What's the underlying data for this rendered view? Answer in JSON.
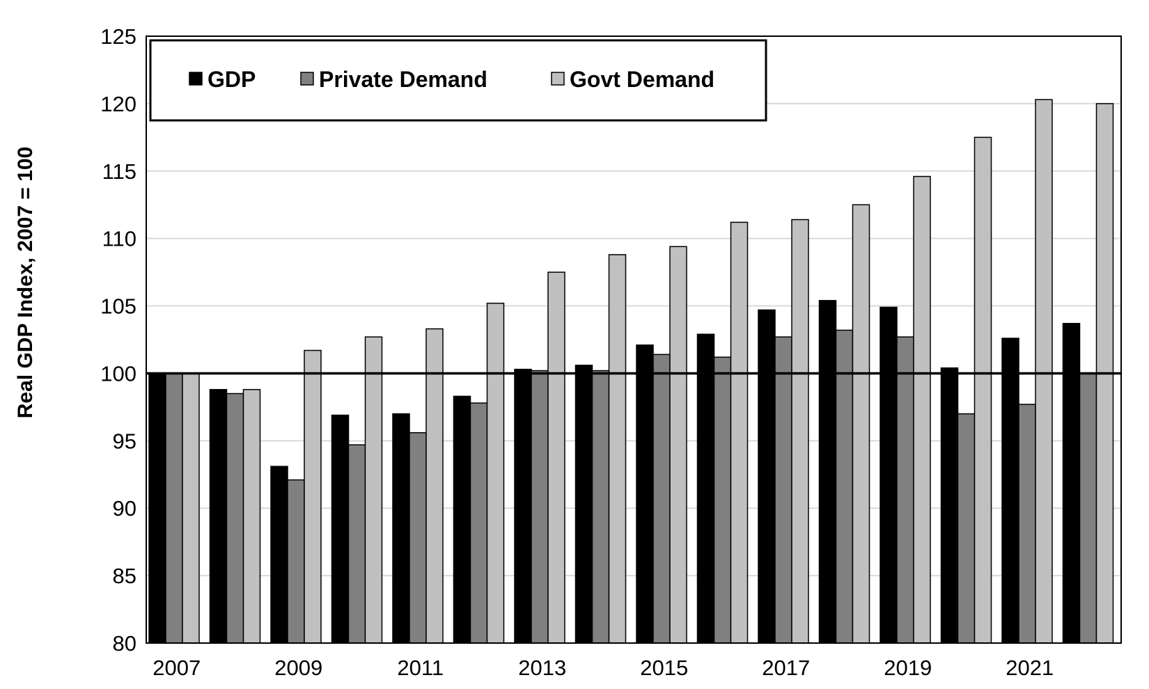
{
  "chart_data": {
    "type": "bar",
    "ylabel": "Real GDP Index, 2007 = 100",
    "xlabel": "",
    "ylim": [
      80,
      125
    ],
    "ytick_step": 5,
    "reference_line": 100,
    "grid": true,
    "legend_position": "top-left",
    "categories": [
      "2007",
      "2008",
      "2009",
      "2010",
      "2011",
      "2012",
      "2013",
      "2014",
      "2015",
      "2016",
      "2017",
      "2018",
      "2019",
      "2020",
      "2021",
      "2022"
    ],
    "xtick_labels": [
      "2007",
      "",
      "2009",
      "",
      "2011",
      "",
      "2013",
      "",
      "2015",
      "",
      "2017",
      "",
      "2019",
      "",
      "2021",
      ""
    ],
    "series": [
      {
        "name": "GDP",
        "color": "#000000",
        "values": [
          100.0,
          98.8,
          93.1,
          96.9,
          97.0,
          98.3,
          100.3,
          100.6,
          102.1,
          102.9,
          104.7,
          105.4,
          104.9,
          100.4,
          102.6,
          103.7
        ]
      },
      {
        "name": "Private Demand",
        "color": "#808080",
        "values": [
          100.0,
          98.5,
          92.1,
          94.7,
          95.6,
          97.8,
          100.2,
          100.2,
          101.4,
          101.2,
          102.7,
          103.2,
          102.7,
          97.0,
          97.7,
          100.0
        ]
      },
      {
        "name": "Govt Demand",
        "color": "#c0c0c0",
        "values": [
          100.0,
          98.8,
          101.7,
          102.7,
          103.3,
          105.2,
          107.5,
          108.8,
          109.4,
          111.2,
          111.4,
          112.5,
          114.6,
          117.5,
          120.3,
          120.0
        ]
      }
    ]
  }
}
